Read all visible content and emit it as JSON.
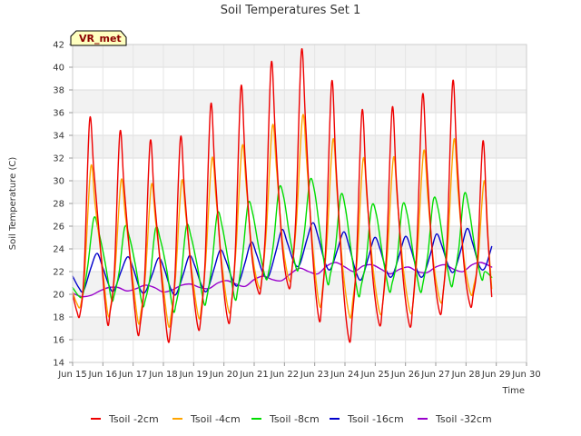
{
  "chart_data": {
    "type": "line",
    "title": "Soil Temperatures Set 1",
    "xlabel": "Time",
    "ylabel": "Soil Temperature (C)",
    "badge": "VR_met",
    "xlim": [
      15.0,
      30.0
    ],
    "ylim": [
      14,
      42
    ],
    "x_ticks": [
      {
        "value": 15,
        "label": "Jun 15"
      },
      {
        "value": 16,
        "label": "Jun 16"
      },
      {
        "value": 17,
        "label": "Jun 17"
      },
      {
        "value": 18,
        "label": "Jun 18"
      },
      {
        "value": 19,
        "label": "Jun 19"
      },
      {
        "value": 20,
        "label": "Jun 20"
      },
      {
        "value": 21,
        "label": "Jun 21"
      },
      {
        "value": 22,
        "label": "Jun 22"
      },
      {
        "value": 23,
        "label": "Jun 23"
      },
      {
        "value": 24,
        "label": "Jun 24"
      },
      {
        "value": 25,
        "label": "Jun 25"
      },
      {
        "value": 26,
        "label": "Jun 26"
      },
      {
        "value": 27,
        "label": "Jun 27"
      },
      {
        "value": 28,
        "label": "Jun 28"
      },
      {
        "value": 29,
        "label": "Jun 29"
      },
      {
        "value": 30,
        "label": "Jun 30"
      }
    ],
    "y_ticks": [
      14,
      16,
      18,
      20,
      22,
      24,
      26,
      28,
      30,
      32,
      34,
      36,
      38,
      40,
      42
    ],
    "y_tick_labels": [
      "14",
      "16",
      "18",
      "20",
      "22",
      "24",
      "26",
      "28",
      "30",
      "32",
      "34",
      "36",
      "38",
      "40",
      "42"
    ],
    "grid": true,
    "legend_position": "bottom",
    "x_unit": "day of June",
    "series": [
      {
        "name": "Tsoil -2cm",
        "color": "#ee0000",
        "x": [
          15.0,
          15.14,
          15.24,
          15.38,
          15.56,
          15.7,
          15.92,
          16.14,
          16.24,
          16.38,
          16.56,
          16.7,
          16.92,
          17.14,
          17.24,
          17.38,
          17.56,
          17.7,
          17.92,
          18.14,
          18.24,
          18.38,
          18.56,
          18.7,
          18.92,
          19.14,
          19.24,
          19.38,
          19.56,
          19.7,
          19.92,
          20.14,
          20.24,
          20.38,
          20.56,
          20.7,
          20.92,
          21.14,
          21.24,
          21.38,
          21.56,
          21.7,
          21.92,
          22.14,
          22.24,
          22.38,
          22.56,
          22.7,
          22.92,
          23.14,
          23.24,
          23.38,
          23.56,
          23.7,
          23.92,
          24.14,
          24.24,
          24.38,
          24.56,
          24.7,
          24.92,
          25.14,
          25.24,
          25.38,
          25.56,
          25.7,
          25.92,
          26.14,
          26.24,
          26.38,
          26.56,
          26.7,
          26.92,
          27.14,
          27.24,
          27.38,
          27.56,
          27.7,
          27.92,
          28.14,
          28.24,
          28.38,
          28.56,
          28.7,
          28.85
        ],
        "y": [
          20.0,
          18.5,
          18.2,
          22.0,
          35.3,
          31.0,
          24.0,
          17.6,
          18.5,
          22.0,
          34.2,
          29.5,
          22.5,
          16.7,
          17.5,
          21.5,
          33.4,
          28.5,
          22.0,
          16.1,
          17.0,
          21.5,
          33.7,
          29.0,
          22.0,
          17.1,
          18.0,
          23.0,
          36.6,
          31.0,
          22.5,
          17.6,
          19.0,
          24.0,
          38.2,
          32.0,
          23.5,
          20.2,
          21.0,
          26.0,
          40.3,
          34.0,
          24.5,
          20.6,
          22.0,
          27.0,
          41.4,
          35.0,
          24.0,
          17.8,
          19.5,
          25.0,
          38.7,
          31.5,
          21.5,
          15.9,
          18.0,
          23.0,
          36.1,
          30.0,
          21.5,
          17.3,
          19.0,
          24.0,
          36.4,
          30.0,
          21.5,
          17.2,
          19.0,
          24.5,
          37.5,
          31.5,
          22.5,
          18.3,
          20.0,
          25.0,
          38.7,
          32.0,
          23.0,
          19.0,
          20.0,
          23.0,
          33.5,
          26.0,
          19.8
        ]
      },
      {
        "name": "Tsoil -4cm",
        "color": "#ffa500",
        "x": [
          15.0,
          15.14,
          15.26,
          15.4,
          15.6,
          15.74,
          15.94,
          16.16,
          16.26,
          16.4,
          16.6,
          16.74,
          16.94,
          17.16,
          17.26,
          17.4,
          17.6,
          17.74,
          17.94,
          18.16,
          18.26,
          18.4,
          18.6,
          18.74,
          18.94,
          19.16,
          19.26,
          19.4,
          19.6,
          19.74,
          19.94,
          20.16,
          20.26,
          20.4,
          20.6,
          20.74,
          20.94,
          21.16,
          21.26,
          21.4,
          21.6,
          21.74,
          21.94,
          22.16,
          22.26,
          22.4,
          22.6,
          22.74,
          22.94,
          23.16,
          23.26,
          23.4,
          23.6,
          23.74,
          23.94,
          24.16,
          24.26,
          24.4,
          24.6,
          24.74,
          24.94,
          25.16,
          25.26,
          25.4,
          25.6,
          25.74,
          25.94,
          26.16,
          26.26,
          26.4,
          26.6,
          26.74,
          26.94,
          27.16,
          27.26,
          27.4,
          27.6,
          27.74,
          27.94,
          28.16,
          28.26,
          28.4,
          28.6,
          28.74,
          28.85
        ],
        "y": [
          20.2,
          19.2,
          19.0,
          22.0,
          31.2,
          28.0,
          23.5,
          18.3,
          19.0,
          22.0,
          30.0,
          27.0,
          22.5,
          17.6,
          18.5,
          21.5,
          29.6,
          26.5,
          22.0,
          17.3,
          18.3,
          21.5,
          29.9,
          27.0,
          22.0,
          18.0,
          19.0,
          23.0,
          31.9,
          28.5,
          22.5,
          18.5,
          19.5,
          24.0,
          33.0,
          29.5,
          23.5,
          20.6,
          21.5,
          25.5,
          34.8,
          31.0,
          24.5,
          21.2,
          22.5,
          26.5,
          35.7,
          31.5,
          24.0,
          19.0,
          20.5,
          24.5,
          33.6,
          29.0,
          22.0,
          18.0,
          19.5,
          23.0,
          31.9,
          28.0,
          22.0,
          18.3,
          19.5,
          23.5,
          32.0,
          28.0,
          22.0,
          18.4,
          19.5,
          24.0,
          32.6,
          28.5,
          22.5,
          19.3,
          20.5,
          24.5,
          33.6,
          29.0,
          23.0,
          20.0,
          20.8,
          23.0,
          30.0,
          24.5,
          20.5
        ]
      },
      {
        "name": "Tsoil -8cm",
        "color": "#00dd00",
        "x": [
          15.0,
          15.22,
          15.34,
          15.5,
          15.7,
          15.86,
          16.06,
          16.28,
          16.38,
          16.54,
          16.72,
          16.88,
          17.08,
          17.3,
          17.4,
          17.56,
          17.74,
          17.9,
          18.1,
          18.32,
          18.42,
          18.58,
          18.76,
          18.92,
          19.12,
          19.34,
          19.44,
          19.6,
          19.78,
          19.94,
          20.14,
          20.36,
          20.46,
          20.62,
          20.8,
          20.96,
          21.16,
          21.38,
          21.48,
          21.64,
          21.82,
          21.98,
          22.18,
          22.4,
          22.5,
          22.66,
          22.84,
          23.0,
          23.2,
          23.42,
          23.52,
          23.68,
          23.86,
          24.02,
          24.22,
          24.44,
          24.54,
          24.7,
          24.88,
          25.04,
          25.24,
          25.46,
          25.56,
          25.72,
          25.9,
          26.06,
          26.26,
          26.48,
          26.58,
          26.74,
          26.92,
          27.08,
          27.28,
          27.5,
          27.6,
          27.76,
          27.94,
          28.1,
          28.3,
          28.52,
          28.62,
          28.85
        ],
        "y": [
          20.6,
          19.8,
          20.0,
          22.5,
          26.7,
          25.5,
          23.0,
          19.6,
          20.0,
          22.0,
          25.9,
          25.0,
          22.5,
          19.1,
          19.5,
          21.5,
          25.8,
          24.8,
          22.3,
          18.6,
          19.2,
          21.5,
          26.0,
          25.0,
          22.5,
          19.2,
          19.8,
          22.5,
          27.1,
          26.0,
          23.0,
          19.6,
          20.5,
          23.5,
          28.0,
          27.0,
          24.0,
          21.4,
          22.0,
          24.5,
          29.3,
          28.5,
          25.0,
          22.2,
          22.8,
          25.5,
          30.0,
          29.0,
          25.0,
          21.0,
          21.8,
          24.0,
          28.7,
          27.5,
          23.5,
          19.9,
          20.8,
          23.0,
          27.7,
          27.0,
          23.5,
          20.3,
          21.0,
          23.0,
          27.8,
          27.0,
          23.5,
          20.3,
          21.0,
          23.5,
          28.3,
          27.5,
          24.0,
          20.8,
          21.5,
          24.0,
          28.8,
          27.5,
          24.0,
          21.3,
          22.0,
          21.5
        ]
      },
      {
        "name": "Tsoil -16cm",
        "color": "#0000cc",
        "x": [
          15.0,
          15.2,
          15.36,
          15.6,
          15.8,
          15.98,
          16.2,
          16.36,
          16.6,
          16.82,
          17.0,
          17.22,
          17.4,
          17.64,
          17.84,
          18.02,
          18.24,
          18.42,
          18.66,
          18.86,
          19.04,
          19.26,
          19.44,
          19.68,
          19.88,
          20.06,
          20.28,
          20.46,
          20.7,
          20.9,
          21.08,
          21.3,
          21.48,
          21.72,
          21.92,
          22.1,
          22.32,
          22.5,
          22.74,
          22.94,
          23.12,
          23.34,
          23.52,
          23.76,
          23.96,
          24.14,
          24.36,
          24.54,
          24.78,
          24.98,
          25.16,
          25.38,
          25.56,
          25.8,
          26.0,
          26.18,
          26.4,
          26.58,
          26.82,
          27.02,
          27.2,
          27.42,
          27.6,
          27.84,
          28.04,
          28.22,
          28.44,
          28.62,
          28.85
        ],
        "y": [
          21.6,
          20.6,
          20.3,
          22.3,
          23.6,
          22.5,
          20.8,
          20.3,
          22.0,
          23.3,
          22.3,
          20.5,
          20.2,
          21.8,
          23.2,
          22.3,
          20.5,
          20.0,
          21.8,
          23.4,
          22.5,
          20.8,
          20.3,
          22.3,
          23.9,
          23.0,
          21.3,
          20.8,
          22.8,
          24.6,
          23.5,
          21.8,
          21.6,
          23.8,
          25.7,
          24.5,
          22.8,
          22.6,
          24.8,
          26.3,
          25.0,
          22.8,
          22.2,
          24.0,
          25.5,
          24.2,
          22.0,
          21.3,
          23.3,
          25.0,
          24.0,
          22.0,
          21.6,
          23.5,
          25.1,
          24.0,
          22.0,
          21.6,
          23.5,
          25.3,
          24.3,
          22.5,
          22.0,
          24.0,
          25.8,
          24.5,
          22.5,
          22.3,
          24.2
        ]
      },
      {
        "name": "Tsoil -32cm",
        "color": "#9900cc",
        "x": [
          15.0,
          15.3,
          15.6,
          15.9,
          16.2,
          16.5,
          16.8,
          17.1,
          17.4,
          17.7,
          18.0,
          18.3,
          18.6,
          18.9,
          19.2,
          19.5,
          19.8,
          20.1,
          20.4,
          20.7,
          21.0,
          21.3,
          21.6,
          21.9,
          22.2,
          22.5,
          22.8,
          23.1,
          23.4,
          23.7,
          24.0,
          24.3,
          24.6,
          24.9,
          25.2,
          25.5,
          25.8,
          26.1,
          26.4,
          26.7,
          27.0,
          27.3,
          27.6,
          27.9,
          28.2,
          28.5,
          28.85
        ],
        "y": [
          20.1,
          19.8,
          19.9,
          20.3,
          20.6,
          20.6,
          20.3,
          20.5,
          20.8,
          20.6,
          20.2,
          20.4,
          20.8,
          20.9,
          20.6,
          20.5,
          21.0,
          21.2,
          20.9,
          20.7,
          21.3,
          21.6,
          21.3,
          21.2,
          21.8,
          22.3,
          22.0,
          21.8,
          22.5,
          22.8,
          22.4,
          22.0,
          22.5,
          22.6,
          22.2,
          21.8,
          22.2,
          22.4,
          22.0,
          21.9,
          22.4,
          22.6,
          22.2,
          22.0,
          22.6,
          22.8,
          22.4
        ]
      }
    ]
  }
}
